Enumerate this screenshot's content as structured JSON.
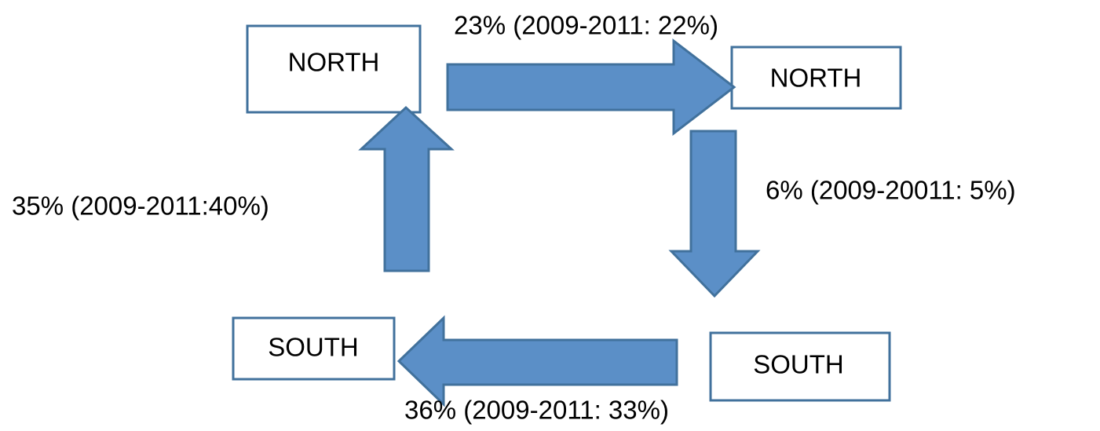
{
  "nodes": [
    {
      "label": "NORTH"
    },
    {
      "label": "NORTH"
    },
    {
      "label": "SOUTH"
    },
    {
      "label": "SOUTH"
    }
  ],
  "edges": [
    {
      "label": "23% (2009-2011: 22%)"
    },
    {
      "label": "6% (2009-20011: 5%)"
    },
    {
      "label": "36% (2009-2011: 33%)"
    },
    {
      "label": "35% (2009-2011:40%)"
    }
  ]
}
